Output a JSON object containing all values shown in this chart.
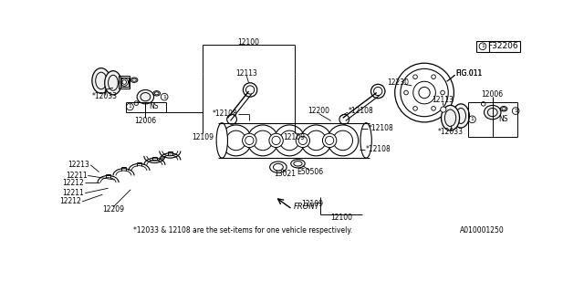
{
  "fig_number": "F32206",
  "fig_ref": "FIG.011",
  "footnote": "*12033 & 12108 are the set-items for one vehicle respectively.",
  "catalog_id": "A010001250",
  "bg_color": "#ffffff",
  "line_color": "#000000",
  "text_color": "#000000",
  "parts": {
    "12033_l": "*12033",
    "12006_l": "12006",
    "12109_l": "12109",
    "12100_t": "12100",
    "12113_c": "12113",
    "12200": "12200",
    "12230": "12230",
    "12108_a": "*12108",
    "12108_b": "*12108",
    "12108_c": "*12108",
    "12108_d": "*12108",
    "13021": "13021",
    "E50506": "E50506",
    "12213": "12213",
    "12211_a": "12211",
    "12211_b": "12211",
    "12212_a": "12212",
    "12212_b": "12212",
    "12209": "12209",
    "12006_r": "12006",
    "12113_r": "12113",
    "12033_r": "*12033",
    "12109_r": "12109",
    "12100_b": "12100"
  }
}
